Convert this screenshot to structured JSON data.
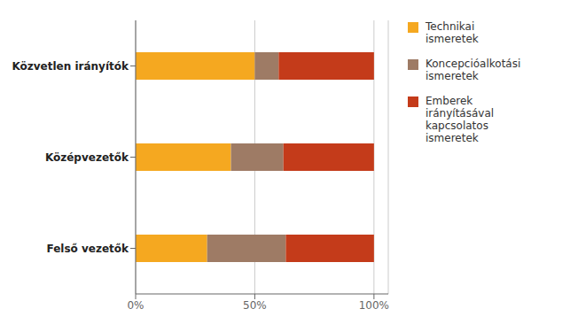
{
  "chart_data": {
    "type": "bar",
    "orientation": "horizontal",
    "stacked": true,
    "categories": [
      "Felső vezetők",
      "Középvezetők",
      "Közvetlen irányítók"
    ],
    "series": [
      {
        "name": "Technikai\nismeretek",
        "color": "#F5A820",
        "values": [
          30,
          40,
          50
        ]
      },
      {
        "name": "Koncepcióalkotási\nismeretek",
        "color": "#9E7B65",
        "values": [
          33,
          22,
          10
        ]
      },
      {
        "name": "Emberek\nirányításával\nkapcsolatos\nismeretek",
        "color": "#C43B1A",
        "values": [
          37,
          38,
          40
        ]
      }
    ],
    "xlim": [
      0,
      106
    ],
    "xticks": [
      {
        "value": 0,
        "label": "0%"
      },
      {
        "value": 50,
        "label": "50%"
      },
      {
        "value": 100,
        "label": "100%"
      }
    ],
    "grid": true,
    "legend": "right"
  }
}
